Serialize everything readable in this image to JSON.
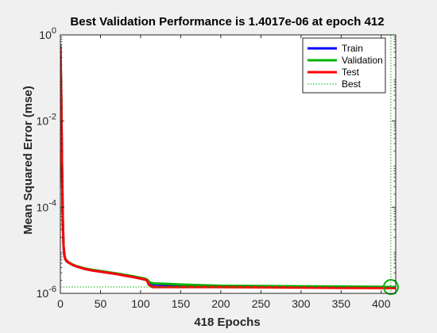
{
  "chart_data": {
    "type": "line",
    "title": "Best Validation Performance is 1.4017e-06 at epoch 412",
    "xlabel": "418 Epochs",
    "ylabel": "Mean Squared Error  (mse)",
    "xscale": "linear",
    "yscale": "log",
    "xlim": [
      0,
      418
    ],
    "ylim": [
      1e-06,
      1
    ],
    "xticks": [
      0,
      50,
      100,
      150,
      200,
      250,
      300,
      350,
      400
    ],
    "yticks": [
      {
        "value": 1,
        "base": "10",
        "exp": "0"
      },
      {
        "value": 0.01,
        "base": "10",
        "exp": "-2"
      },
      {
        "value": 0.0001,
        "base": "10",
        "exp": "-4"
      },
      {
        "value": 1e-06,
        "base": "10",
        "exp": "-6"
      }
    ],
    "grid": false,
    "legend_position": "top-right",
    "series": [
      {
        "name": "Train",
        "color": "#0000ff",
        "x": [
          0,
          1,
          2,
          3,
          4,
          5,
          6,
          8,
          10,
          15,
          20,
          30,
          40,
          50,
          60,
          70,
          80,
          90,
          100,
          105,
          108,
          110,
          112,
          115,
          120,
          150,
          200,
          250,
          300,
          350,
          400,
          412,
          418
        ],
        "y": [
          0.5,
          0.05,
          0.001,
          5e-05,
          1.2e-05,
          7.5e-06,
          6.2e-06,
          5.5e-06,
          5.2e-06,
          4.6e-06,
          4.2e-06,
          3.7e-06,
          3.4e-06,
          3.2e-06,
          3e-06,
          2.8e-06,
          2.6e-06,
          2.4e-06,
          2.2e-06,
          2.1e-06,
          2e-06,
          1.8e-06,
          1.7e-06,
          1.6e-06,
          1.6e-06,
          1.5e-06,
          1.45e-06,
          1.43e-06,
          1.41e-06,
          1.4e-06,
          1.39e-06,
          1.38e-06,
          1.38e-06
        ]
      },
      {
        "name": "Validation",
        "color": "#00b300",
        "x": [
          0,
          1,
          2,
          3,
          4,
          5,
          6,
          8,
          10,
          15,
          20,
          30,
          40,
          50,
          60,
          70,
          80,
          90,
          100,
          105,
          108,
          110,
          112,
          115,
          120,
          150,
          200,
          250,
          300,
          350,
          400,
          412,
          418
        ],
        "y": [
          0.6,
          0.06,
          0.0012,
          6e-05,
          1.3e-05,
          8e-06,
          6.4e-06,
          5.7e-06,
          5.3e-06,
          4.7e-06,
          4.3e-06,
          3.8e-06,
          3.5e-06,
          3.3e-06,
          3.1e-06,
          2.9e-06,
          2.7e-06,
          2.5e-06,
          2.3e-06,
          2.2e-06,
          2.1e-06,
          1.9e-06,
          1.8e-06,
          1.7e-06,
          1.7e-06,
          1.6e-06,
          1.5e-06,
          1.48e-06,
          1.46e-06,
          1.44e-06,
          1.42e-06,
          1.4017e-06,
          1.41e-06
        ]
      },
      {
        "name": "Test",
        "color": "#ff0000",
        "x": [
          0,
          1,
          2,
          3,
          4,
          5,
          6,
          8,
          10,
          15,
          20,
          30,
          40,
          50,
          60,
          70,
          80,
          90,
          100,
          105,
          108,
          110,
          112,
          115,
          120,
          150,
          200,
          250,
          300,
          350,
          400,
          412,
          418
        ],
        "y": [
          0.55,
          0.05,
          0.0011,
          5.5e-05,
          1.25e-05,
          7.8e-06,
          6.3e-06,
          5.6e-06,
          5.2e-06,
          4.6e-06,
          4.2e-06,
          3.7e-06,
          3.4e-06,
          3.2e-06,
          3e-06,
          2.8e-06,
          2.6e-06,
          2.4e-06,
          2.2e-06,
          2.1e-06,
          2e-06,
          1.6e-06,
          1.5e-06,
          1.4e-06,
          1.4e-06,
          1.4e-06,
          1.4e-06,
          1.38e-06,
          1.36e-06,
          1.34e-06,
          1.33e-06,
          1.32e-06,
          1.32e-06
        ]
      }
    ],
    "best": {
      "name": "Best",
      "epoch": 412,
      "value": 1.4017e-06,
      "color": "#00b300"
    }
  }
}
